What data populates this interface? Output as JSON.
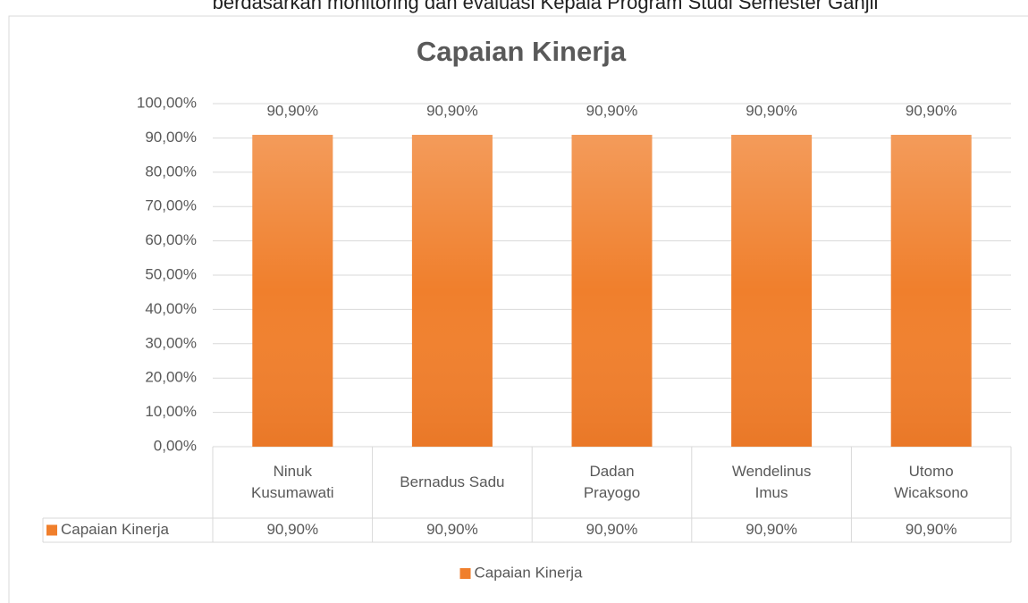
{
  "page_caption": "berdasarkan monitoring dan evaluasi Kepala Program Studi Semester Ganjil",
  "chart_data": {
    "type": "bar",
    "title": "Capaian Kinerja",
    "categories": [
      "Ninuk Kusumawati",
      "Bernadus Sadu",
      "Dadan Prayogo",
      "Wendelinus Imus",
      "Utomo Wicaksono"
    ],
    "series": [
      {
        "name": "Capaian Kinerja",
        "color": "#f07f2c",
        "values": [
          90.9,
          90.9,
          90.9,
          90.9,
          90.9
        ],
        "value_labels": [
          "90,90%",
          "90,90%",
          "90,90%",
          "90,90%",
          "90,90%"
        ]
      }
    ],
    "ylim": [
      0,
      100
    ],
    "yticks": [
      {
        "value": 0,
        "label": "0,00%"
      },
      {
        "value": 10,
        "label": "10,00%"
      },
      {
        "value": 20,
        "label": "20,00%"
      },
      {
        "value": 30,
        "label": "30,00%"
      },
      {
        "value": 40,
        "label": "40,00%"
      },
      {
        "value": 50,
        "label": "50,00%"
      },
      {
        "value": 60,
        "label": "60,00%"
      },
      {
        "value": 70,
        "label": "70,00%"
      },
      {
        "value": 80,
        "label": "80,00%"
      },
      {
        "value": 90,
        "label": "90,00%"
      },
      {
        "value": 100,
        "label": "100,00%"
      }
    ],
    "grid": true,
    "data_table": true,
    "legend": "bottom"
  }
}
